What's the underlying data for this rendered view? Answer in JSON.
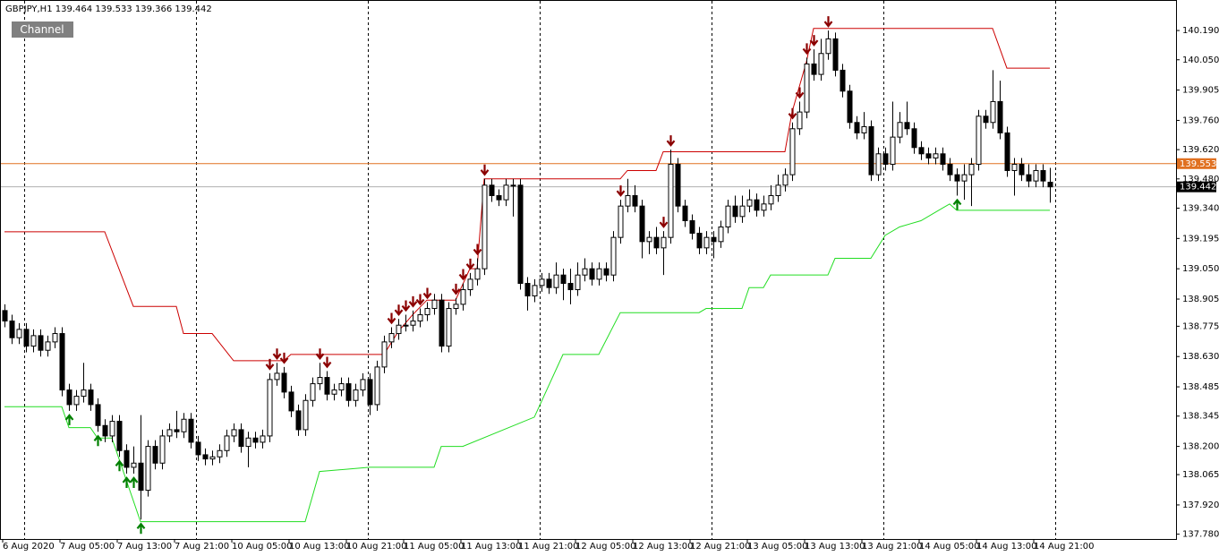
{
  "chart_data": {
    "type": "candlestick",
    "title": "GBPJPY,H1",
    "button": "Channel",
    "ylim": [
      137.757,
      140.336
    ],
    "yticks": [
      {
        "value": 140.19,
        "label": "140.190"
      },
      {
        "value": 140.05,
        "label": "140.050"
      },
      139.905,
      {
        "value": 139.76,
        "label": "139.760"
      },
      {
        "value": 139.62,
        "label": "139.620"
      },
      {
        "value": 139.48,
        "label": "139.480"
      },
      {
        "value": 139.34,
        "label": "139.340"
      },
      139.195,
      {
        "value": 139.05,
        "label": "139.050"
      },
      138.905,
      138.775,
      {
        "value": 138.63,
        "label": "138.630"
      },
      138.485,
      138.345,
      {
        "value": 138.2,
        "label": "138.200"
      },
      138.065,
      {
        "value": 137.92,
        "label": "137.920"
      },
      {
        "value": 137.78,
        "label": "137.780"
      }
    ],
    "xticks": [
      {
        "value": 0,
        "label": "6 Aug 2020"
      },
      {
        "value": 8,
        "label": "7 Aug 05:00"
      },
      {
        "value": 16,
        "label": "7 Aug 13:00"
      },
      {
        "value": 24,
        "label": "7 Aug 21:00"
      },
      {
        "value": 32,
        "label": "10 Aug 05:00"
      },
      {
        "value": 40,
        "label": "10 Aug 13:00"
      },
      {
        "value": 48,
        "label": "10 Aug 21:00"
      },
      {
        "value": 56,
        "label": "11 Aug 05:00"
      },
      {
        "value": 64,
        "label": "11 Aug 13:00"
      },
      {
        "value": 72,
        "label": "11 Aug 21:00"
      },
      {
        "value": 80,
        "label": "12 Aug 05:00"
      },
      {
        "value": 88,
        "label": "12 Aug 13:00"
      },
      {
        "value": 96,
        "label": "12 Aug 21:00"
      },
      {
        "value": 104,
        "label": "13 Aug 05:00"
      },
      {
        "value": 112,
        "label": "13 Aug 13:00"
      },
      {
        "value": 120,
        "label": "13 Aug 21:00"
      },
      {
        "value": 128,
        "label": "14 Aug 05:00"
      },
      {
        "value": 136,
        "label": "14 Aug 13:00"
      },
      {
        "value": 144,
        "label": "14 Aug 21:00"
      }
    ],
    "day_separators": [
      3,
      27,
      51,
      75,
      99,
      123,
      147
    ],
    "open": [
      138.85,
      138.8,
      138.72,
      138.76,
      138.68,
      138.73,
      138.66,
      138.7,
      138.74,
      138.47,
      138.4,
      138.44,
      138.47,
      138.4,
      138.3,
      138.25,
      138.32,
      138.18,
      138.1,
      138.12,
      137.99,
      138.2,
      138.12,
      138.25,
      138.28,
      138.27,
      138.33,
      138.22,
      138.16,
      138.14,
      138.15,
      138.18,
      138.25,
      138.28,
      138.2,
      138.24,
      138.22,
      138.25,
      138.52,
      138.55,
      138.46,
      138.37,
      138.28,
      138.42,
      138.5,
      138.53,
      138.45,
      138.47,
      138.5,
      138.42,
      138.47,
      138.52,
      138.4,
      138.58,
      138.7,
      138.74,
      138.78,
      138.78,
      138.8,
      138.83,
      138.86,
      138.9,
      138.68,
      138.86,
      138.88,
      138.95,
      139.0,
      139.05,
      139.45,
      139.4,
      139.38,
      139.45,
      139.45,
      138.98,
      138.92,
      138.97,
      139.0,
      138.96,
      139.02,
      138.98,
      138.95,
      139.02,
      139.05,
      139.0,
      139.05,
      139.02,
      139.2,
      139.35,
      139.4,
      139.35,
      139.18,
      139.2,
      139.15,
      139.2,
      139.55,
      139.35,
      139.28,
      139.22,
      139.15,
      139.2,
      139.18,
      139.25,
      139.35,
      139.3,
      139.35,
      139.38,
      139.33,
      139.36,
      139.4,
      139.45,
      139.5,
      139.72,
      139.8,
      140.03,
      139.98,
      140.08,
      140.15,
      140.0,
      139.9,
      139.75,
      139.7,
      139.73,
      139.5,
      139.6,
      139.55,
      139.68,
      139.75,
      139.72,
      139.63,
      139.6,
      139.58,
      139.6,
      139.55,
      139.5,
      139.47,
      139.5,
      139.55,
      139.78,
      139.75,
      139.85,
      139.7,
      139.52,
      139.55,
      139.5,
      139.47,
      139.52,
      139.464
    ],
    "high": [
      138.88,
      138.83,
      138.79,
      138.79,
      138.76,
      138.76,
      138.73,
      138.77,
      138.77,
      138.5,
      138.47,
      138.6,
      138.5,
      138.43,
      138.33,
      138.35,
      138.35,
      138.21,
      138.2,
      138.35,
      138.23,
      138.23,
      138.28,
      138.31,
      138.37,
      138.36,
      138.36,
      138.25,
      138.19,
      138.18,
      138.21,
      138.28,
      138.31,
      138.31,
      138.27,
      138.27,
      138.28,
      138.55,
      138.6,
      138.58,
      138.49,
      138.4,
      138.45,
      138.53,
      138.6,
      138.56,
      138.5,
      138.53,
      138.53,
      138.5,
      138.55,
      138.55,
      138.61,
      138.73,
      138.77,
      138.81,
      138.83,
      138.85,
      138.86,
      138.89,
      138.93,
      138.93,
      138.89,
      138.91,
      138.98,
      139.03,
      139.1,
      139.48,
      139.48,
      139.43,
      139.48,
      139.48,
      139.48,
      139.01,
      139.0,
      139.03,
      139.03,
      139.08,
      139.05,
      139.05,
      139.08,
      139.1,
      139.08,
      139.08,
      139.08,
      139.23,
      139.38,
      139.48,
      139.45,
      139.38,
      139.23,
      139.25,
      139.23,
      139.62,
      139.58,
      139.38,
      139.31,
      139.25,
      139.23,
      139.23,
      139.28,
      139.38,
      139.4,
      139.4,
      139.43,
      139.41,
      139.4,
      139.45,
      139.5,
      139.53,
      139.75,
      139.85,
      140.06,
      140.1,
      140.15,
      140.19,
      140.18,
      140.03,
      139.93,
      139.78,
      139.8,
      139.76,
      139.63,
      139.63,
      139.85,
      139.8,
      139.85,
      139.75,
      139.66,
      139.63,
      139.63,
      139.63,
      139.58,
      139.53,
      139.55,
      139.58,
      139.81,
      139.81,
      140.0,
      139.95,
      139.73,
      139.58,
      139.58,
      139.55,
      139.55,
      139.55,
      139.533
    ],
    "low": [
      138.77,
      138.69,
      138.69,
      138.65,
      138.65,
      138.63,
      138.63,
      138.67,
      138.44,
      138.37,
      138.37,
      138.41,
      138.37,
      138.27,
      138.22,
      138.22,
      138.15,
      138.07,
      138.07,
      137.85,
      137.96,
      138.09,
      138.09,
      138.22,
      138.24,
      138.24,
      138.19,
      138.13,
      138.11,
      138.11,
      138.12,
      138.15,
      138.22,
      138.17,
      138.1,
      138.19,
      138.19,
      138.22,
      138.49,
      138.43,
      138.34,
      138.25,
      138.25,
      138.39,
      138.47,
      138.42,
      138.42,
      138.44,
      138.39,
      138.39,
      138.44,
      138.35,
      138.37,
      138.55,
      138.67,
      138.71,
      138.75,
      138.75,
      138.77,
      138.8,
      138.83,
      138.65,
      138.65,
      138.83,
      138.85,
      138.92,
      138.97,
      139.02,
      139.37,
      139.35,
      139.35,
      139.3,
      138.95,
      138.85,
      138.89,
      138.94,
      138.93,
      138.93,
      138.9,
      138.88,
      138.92,
      138.99,
      138.97,
      138.97,
      138.99,
      138.99,
      139.17,
      139.32,
      139.32,
      139.1,
      139.12,
      139.12,
      139.02,
      139.17,
      139.32,
      139.25,
      139.19,
      139.12,
      139.12,
      139.1,
      139.15,
      139.22,
      139.27,
      139.27,
      139.32,
      139.3,
      139.3,
      139.33,
      139.37,
      139.42,
      139.47,
      139.69,
      139.77,
      139.95,
      139.95,
      140.05,
      139.97,
      139.87,
      139.72,
      139.67,
      139.67,
      139.47,
      139.47,
      139.52,
      139.52,
      139.65,
      139.69,
      139.6,
      139.57,
      139.55,
      139.55,
      139.52,
      139.47,
      139.4,
      139.38,
      139.35,
      139.52,
      139.72,
      139.72,
      139.67,
      139.49,
      139.4,
      139.47,
      139.44,
      139.44,
      139.44,
      139.366
    ],
    "close": [
      138.8,
      138.72,
      138.76,
      138.68,
      138.73,
      138.66,
      138.7,
      138.74,
      138.47,
      138.4,
      138.44,
      138.47,
      138.4,
      138.3,
      138.25,
      138.32,
      138.18,
      138.1,
      138.12,
      137.99,
      138.2,
      138.12,
      138.25,
      138.28,
      138.27,
      138.33,
      138.22,
      138.16,
      138.14,
      138.15,
      138.18,
      138.25,
      138.28,
      138.2,
      138.24,
      138.22,
      138.25,
      138.52,
      138.55,
      138.46,
      138.37,
      138.28,
      138.42,
      138.5,
      138.53,
      138.45,
      138.47,
      138.5,
      138.42,
      138.47,
      138.52,
      138.4,
      138.58,
      138.7,
      138.74,
      138.78,
      138.78,
      138.8,
      138.83,
      138.86,
      138.9,
      138.68,
      138.86,
      138.88,
      138.95,
      139.0,
      139.05,
      139.45,
      139.4,
      139.38,
      139.45,
      139.45,
      138.98,
      138.92,
      138.97,
      139.0,
      138.96,
      139.02,
      138.98,
      138.95,
      139.02,
      139.05,
      139.0,
      139.05,
      139.02,
      139.2,
      139.35,
      139.4,
      139.35,
      139.18,
      139.2,
      139.15,
      139.2,
      139.55,
      139.35,
      139.28,
      139.22,
      139.15,
      139.2,
      139.18,
      139.25,
      139.35,
      139.3,
      139.35,
      139.38,
      139.33,
      139.36,
      139.4,
      139.45,
      139.5,
      139.72,
      139.8,
      140.03,
      139.98,
      140.08,
      140.15,
      140.0,
      139.9,
      139.75,
      139.7,
      139.73,
      139.5,
      139.6,
      139.55,
      139.68,
      139.75,
      139.72,
      139.63,
      139.6,
      139.58,
      139.6,
      139.55,
      139.5,
      139.47,
      139.5,
      139.55,
      139.78,
      139.75,
      139.85,
      139.7,
      139.52,
      139.55,
      139.5,
      139.47,
      139.52,
      139.47,
      139.442
    ],
    "bull_color": "#ffffff",
    "bear_color": "#000000",
    "upper_channel": {
      "color": "#cc0000",
      "x": [
        0,
        14,
        18,
        24,
        25,
        29,
        32,
        39,
        40,
        53,
        55,
        57,
        59,
        63,
        65,
        66,
        67,
        86,
        87,
        91,
        92,
        109,
        110,
        112,
        113,
        138,
        140,
        146
      ],
      "values": [
        139.227,
        139.227,
        138.87,
        138.87,
        138.74,
        138.74,
        138.61,
        138.61,
        138.64,
        138.64,
        138.75,
        138.83,
        138.9,
        138.9,
        139.05,
        139.05,
        139.48,
        139.48,
        139.52,
        139.52,
        139.61,
        139.61,
        139.8,
        140.04,
        140.2,
        140.2,
        140.01,
        140.01
      ]
    },
    "lower_channel": {
      "color": "#22dd22",
      "x": [
        0,
        8,
        9,
        12,
        13,
        15,
        19,
        42,
        44,
        51,
        60,
        61,
        64,
        74,
        78,
        83,
        86,
        97,
        98,
        103,
        104,
        106,
        107,
        115,
        116,
        121,
        123,
        125,
        128,
        131,
        132,
        133,
        146
      ],
      "values": [
        138.39,
        138.39,
        138.29,
        138.29,
        138.24,
        138.24,
        137.84,
        137.84,
        138.08,
        138.1,
        138.1,
        138.2,
        138.2,
        138.34,
        138.64,
        138.64,
        138.84,
        138.84,
        138.86,
        138.86,
        138.96,
        138.96,
        139.02,
        139.02,
        139.1,
        139.1,
        139.21,
        139.25,
        139.28,
        139.34,
        139.36,
        139.33,
        139.33
      ]
    },
    "sell_signals": {
      "color": "#8b0000",
      "x": [
        37,
        38,
        39,
        44,
        45,
        54,
        55,
        56,
        57,
        58,
        59,
        63,
        64,
        65,
        66,
        67,
        86,
        92,
        93,
        110,
        111,
        112,
        113,
        115
      ]
    },
    "buy_signals": {
      "color": "#008000",
      "x": [
        9,
        13,
        16,
        17,
        18,
        19,
        133
      ]
    },
    "level": {
      "value": 139.553,
      "color": "#e07020"
    },
    "bid_color": "#b0b0b0"
  }
}
